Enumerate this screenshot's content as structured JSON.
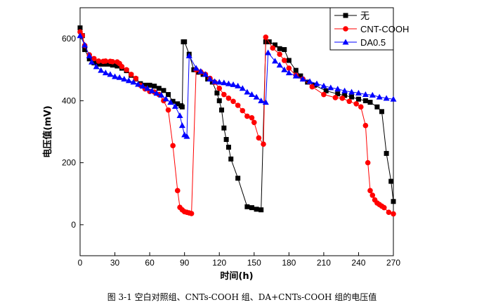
{
  "caption": "图 3-1  空白对照组、CNTs-COOH 组、DA+CNTs-COOH 组的电压值",
  "chart_data": {
    "type": "line",
    "xlabel": "时间(h)",
    "ylabel": "电压值(mV)",
    "xlim": [
      0,
      270
    ],
    "ylim": [
      -100,
      700
    ],
    "xticks": [
      0,
      30,
      60,
      90,
      120,
      150,
      180,
      210,
      240,
      270
    ],
    "yticks": [
      0,
      200,
      400,
      600
    ],
    "xtick_labels": [
      "0",
      "30",
      "60",
      "90",
      "120",
      "150",
      "180",
      "210",
      "240",
      "270"
    ],
    "ytick_labels": [
      "0",
      "200",
      "400",
      "600"
    ],
    "legend_position": "top-right",
    "grid": false,
    "series": [
      {
        "name": "无",
        "color": "#000000",
        "marker": "square",
        "points": [
          [
            0,
            635
          ],
          [
            2,
            610
          ],
          [
            4,
            565
          ],
          [
            8,
            535
          ],
          [
            12,
            522
          ],
          [
            16,
            518
          ],
          [
            20,
            518
          ],
          [
            24,
            518
          ],
          [
            28,
            515
          ],
          [
            32,
            512
          ],
          [
            36,
            505
          ],
          [
            40,
            497
          ],
          [
            44,
            482
          ],
          [
            48,
            470
          ],
          [
            52,
            455
          ],
          [
            56,
            450
          ],
          [
            60,
            450
          ],
          [
            64,
            447
          ],
          [
            68,
            440
          ],
          [
            72,
            433
          ],
          [
            76,
            420
          ],
          [
            80,
            398
          ],
          [
            84,
            390
          ],
          [
            87,
            384
          ],
          [
            88,
            380
          ],
          [
            89,
            590
          ],
          [
            90,
            590
          ],
          [
            94,
            550
          ],
          [
            98,
            500
          ],
          [
            102,
            492
          ],
          [
            106,
            485
          ],
          [
            110,
            470
          ],
          [
            114,
            460
          ],
          [
            118,
            425
          ],
          [
            120,
            400
          ],
          [
            122,
            370
          ],
          [
            124,
            312
          ],
          [
            126,
            275
          ],
          [
            128,
            250
          ],
          [
            130,
            212
          ],
          [
            136,
            150
          ],
          [
            144,
            58
          ],
          [
            148,
            55
          ],
          [
            152,
            50
          ],
          [
            156,
            48
          ],
          [
            160,
            590
          ],
          [
            163,
            590
          ],
          [
            168,
            580
          ],
          [
            172,
            568
          ],
          [
            176,
            565
          ],
          [
            180,
            530
          ],
          [
            186,
            498
          ],
          [
            190,
            480
          ],
          [
            196,
            460
          ],
          [
            202,
            450
          ],
          [
            212,
            432
          ],
          [
            222,
            422
          ],
          [
            228,
            417
          ],
          [
            234,
            412
          ],
          [
            240,
            405
          ],
          [
            246,
            400
          ],
          [
            250,
            395
          ],
          [
            256,
            380
          ],
          [
            260,
            365
          ],
          [
            264,
            230
          ],
          [
            268,
            140
          ],
          [
            270,
            75
          ]
        ]
      },
      {
        "name": "CNT-COOH",
        "color": "#ff0000",
        "marker": "circle",
        "points": [
          [
            0,
            622
          ],
          [
            2,
            610
          ],
          [
            4,
            578
          ],
          [
            8,
            548
          ],
          [
            12,
            536
          ],
          [
            16,
            528
          ],
          [
            20,
            527
          ],
          [
            22,
            528
          ],
          [
            26,
            527
          ],
          [
            28,
            526
          ],
          [
            32,
            525
          ],
          [
            34,
            520
          ],
          [
            36,
            510
          ],
          [
            40,
            500
          ],
          [
            44,
            485
          ],
          [
            48,
            472
          ],
          [
            52,
            450
          ],
          [
            56,
            438
          ],
          [
            60,
            430
          ],
          [
            64,
            428
          ],
          [
            68,
            420
          ],
          [
            72,
            400
          ],
          [
            76,
            370
          ],
          [
            80,
            255
          ],
          [
            84,
            110
          ],
          [
            86,
            56
          ],
          [
            88,
            48
          ],
          [
            90,
            42
          ],
          [
            92,
            40
          ],
          [
            94,
            38
          ],
          [
            96,
            36
          ],
          [
            100,
            500
          ],
          [
            104,
            493
          ],
          [
            108,
            485
          ],
          [
            112,
            472
          ],
          [
            116,
            460
          ],
          [
            120,
            440
          ],
          [
            124,
            420
          ],
          [
            128,
            408
          ],
          [
            132,
            398
          ],
          [
            136,
            385
          ],
          [
            140,
            368
          ],
          [
            144,
            350
          ],
          [
            148,
            345
          ],
          [
            150,
            330
          ],
          [
            154,
            280
          ],
          [
            158,
            260
          ],
          [
            160,
            605
          ],
          [
            166,
            570
          ],
          [
            172,
            550
          ],
          [
            176,
            530
          ],
          [
            180,
            505
          ],
          [
            186,
            482
          ],
          [
            192,
            470
          ],
          [
            200,
            445
          ],
          [
            210,
            420
          ],
          [
            220,
            410
          ],
          [
            226,
            408
          ],
          [
            232,
            398
          ],
          [
            238,
            390
          ],
          [
            242,
            380
          ],
          [
            246,
            320
          ],
          [
            248,
            200
          ],
          [
            250,
            110
          ],
          [
            252,
            95
          ],
          [
            254,
            80
          ],
          [
            256,
            70
          ],
          [
            258,
            65
          ],
          [
            260,
            60
          ],
          [
            262,
            55
          ],
          [
            266,
            40
          ],
          [
            270,
            35
          ]
        ]
      },
      {
        "name": "DA0.5",
        "color": "#0000ff",
        "marker": "triangle",
        "points": [
          [
            0,
            610
          ],
          [
            4,
            580
          ],
          [
            8,
            545
          ],
          [
            10,
            525
          ],
          [
            14,
            510
          ],
          [
            18,
            498
          ],
          [
            22,
            490
          ],
          [
            26,
            485
          ],
          [
            30,
            478
          ],
          [
            34,
            475
          ],
          [
            38,
            470
          ],
          [
            42,
            465
          ],
          [
            46,
            460
          ],
          [
            50,
            453
          ],
          [
            54,
            447
          ],
          [
            58,
            440
          ],
          [
            62,
            432
          ],
          [
            66,
            424
          ],
          [
            70,
            418
          ],
          [
            74,
            406
          ],
          [
            78,
            395
          ],
          [
            82,
            382
          ],
          [
            86,
            352
          ],
          [
            88,
            320
          ],
          [
            90,
            290
          ],
          [
            92,
            285
          ],
          [
            94,
            545
          ],
          [
            100,
            505
          ],
          [
            104,
            495
          ],
          [
            108,
            485
          ],
          [
            112,
            470
          ],
          [
            116,
            462
          ],
          [
            120,
            460
          ],
          [
            124,
            458
          ],
          [
            128,
            455
          ],
          [
            132,
            452
          ],
          [
            136,
            448
          ],
          [
            140,
            440
          ],
          [
            144,
            428
          ],
          [
            148,
            420
          ],
          [
            152,
            412
          ],
          [
            156,
            400
          ],
          [
            160,
            395
          ],
          [
            162,
            555
          ],
          [
            168,
            528
          ],
          [
            172,
            515
          ],
          [
            176,
            500
          ],
          [
            180,
            490
          ],
          [
            186,
            480
          ],
          [
            192,
            470
          ],
          [
            198,
            462
          ],
          [
            204,
            455
          ],
          [
            210,
            448
          ],
          [
            216,
            442
          ],
          [
            222,
            438
          ],
          [
            228,
            432
          ],
          [
            234,
            428
          ],
          [
            240,
            425
          ],
          [
            246,
            420
          ],
          [
            252,
            418
          ],
          [
            258,
            412
          ],
          [
            264,
            408
          ],
          [
            270,
            405
          ]
        ]
      }
    ]
  }
}
